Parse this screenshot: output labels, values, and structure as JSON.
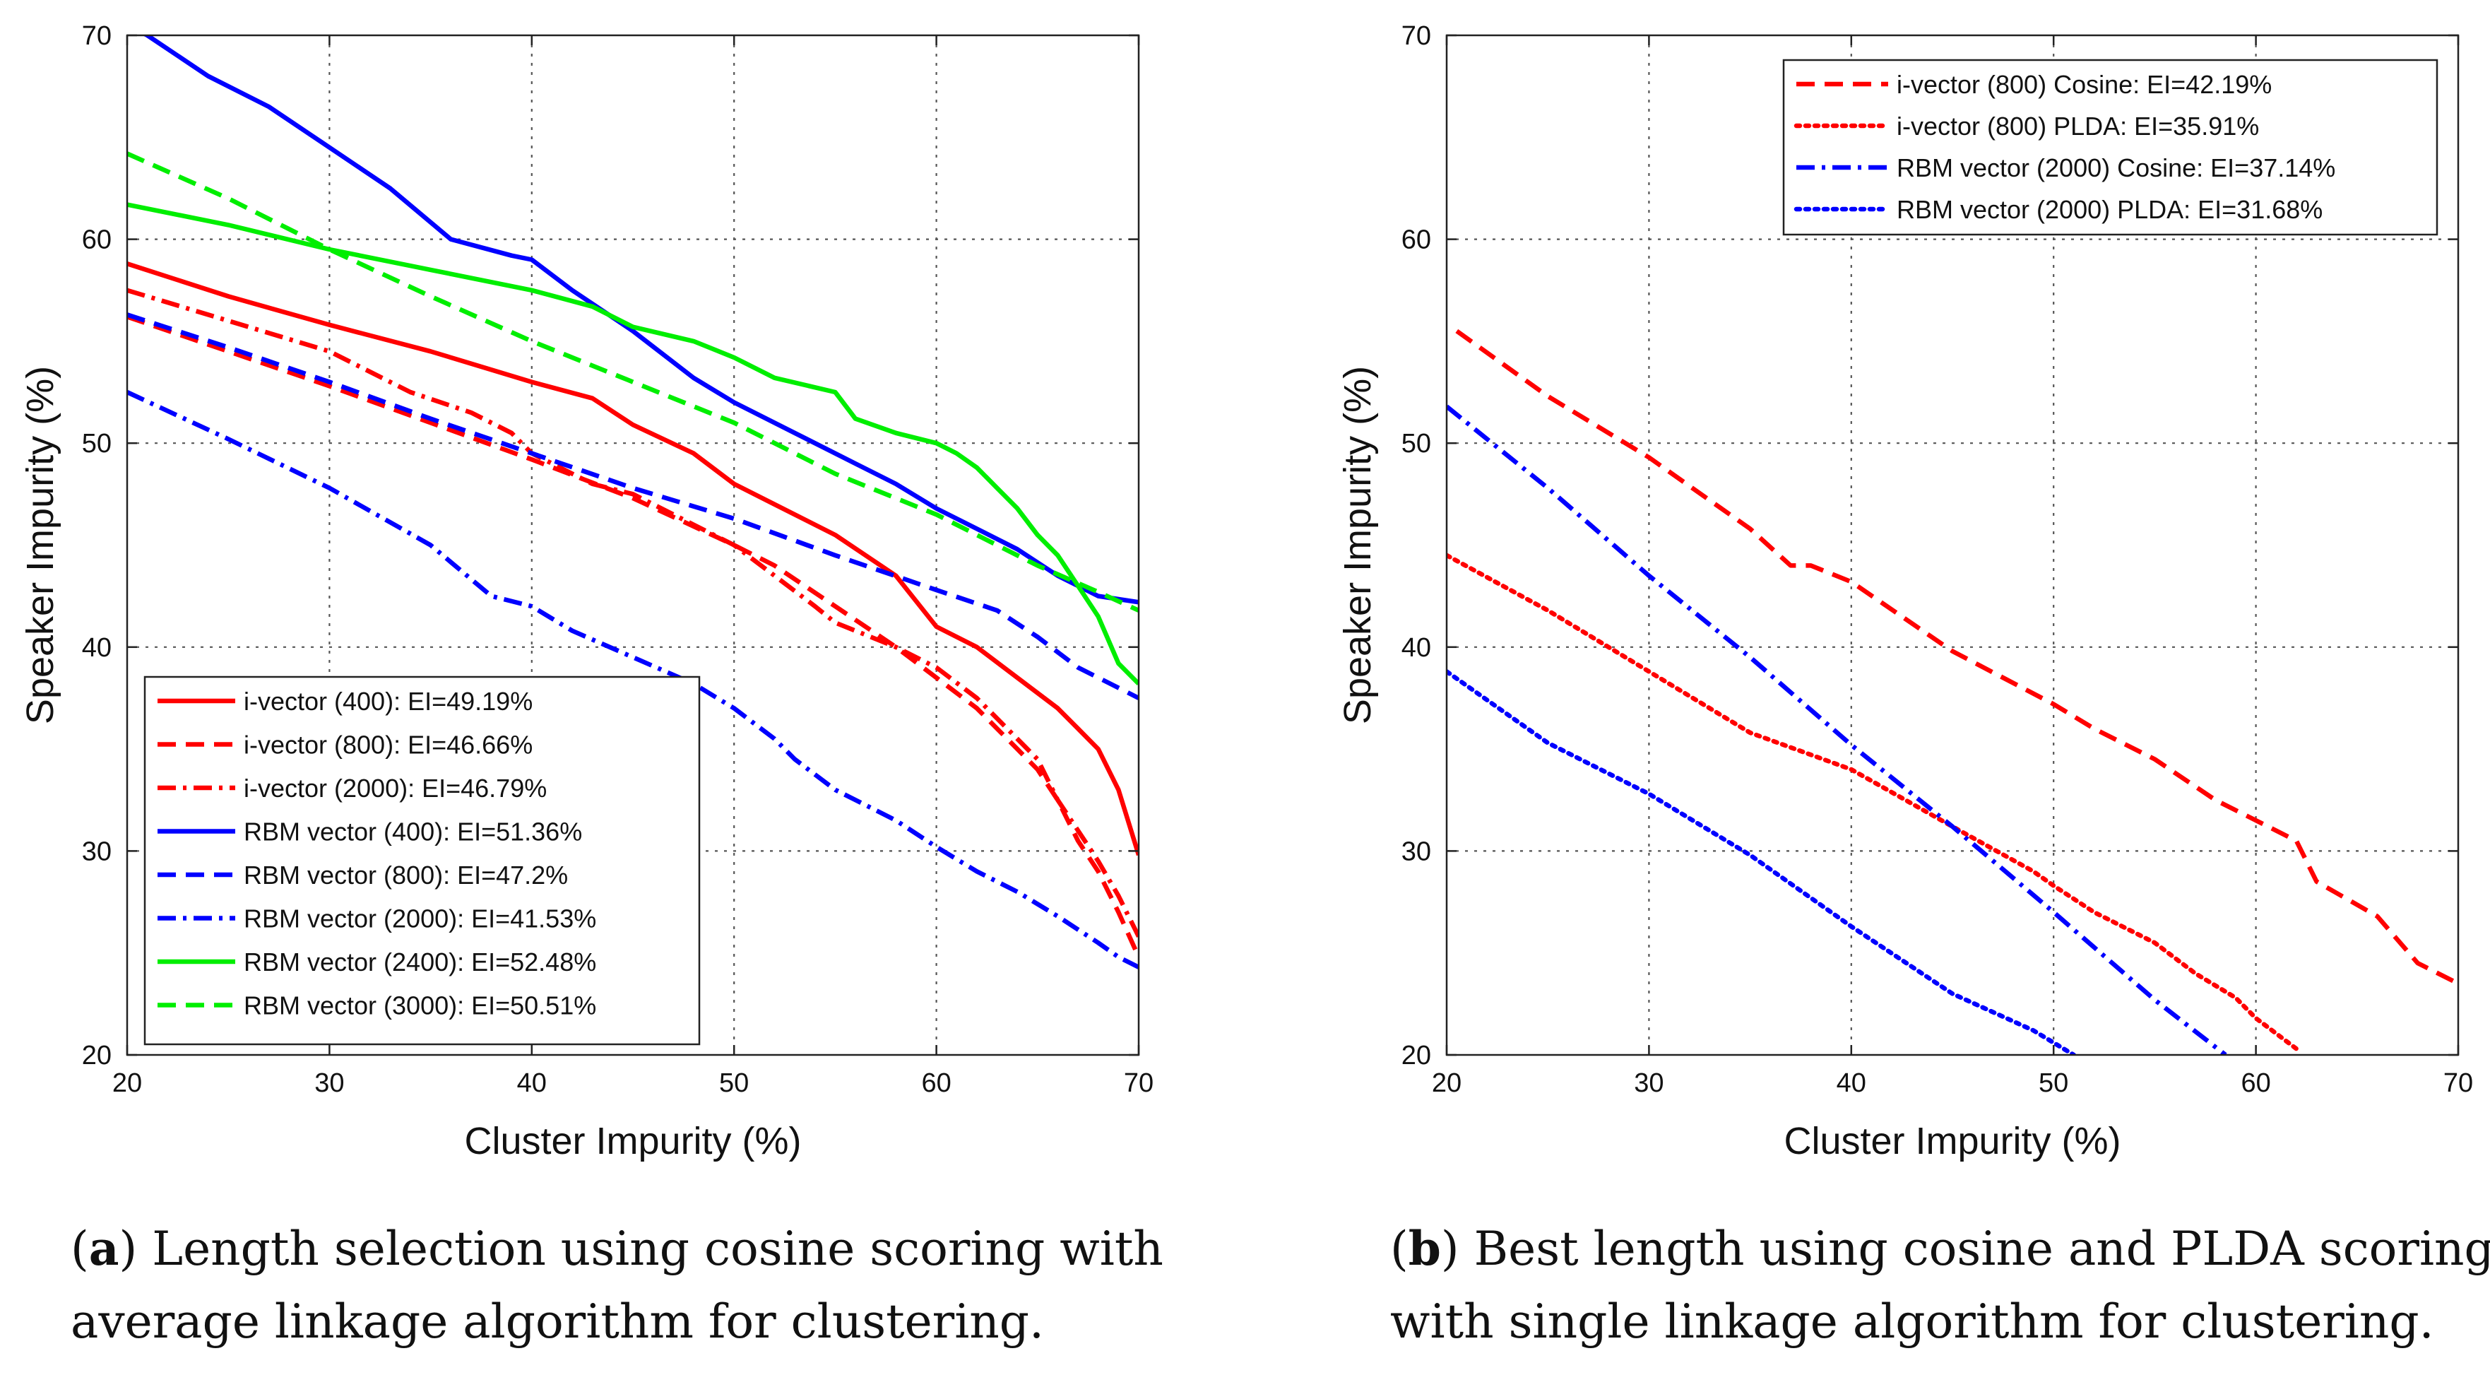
{
  "chart_data": [
    {
      "type": "line",
      "caption_letter": "a",
      "caption_lines": [
        "Length selection using cosine scoring with",
        "average linkage algorithm for clustering."
      ],
      "xlabel": "Cluster Impurity (%)",
      "ylabel": "Speaker Impurity (%)",
      "xlim": [
        20,
        70
      ],
      "ylim": [
        20,
        70
      ],
      "xticks": [
        20,
        30,
        40,
        50,
        60,
        70
      ],
      "yticks": [
        20,
        30,
        40,
        50,
        60,
        70
      ],
      "grid": true,
      "legend_position": "bottom-left",
      "series": [
        {
          "name": "i-vector (400): EI=49.19%",
          "color": "#ff0000",
          "style": "solid",
          "x": [
            20,
            25,
            30,
            35,
            40,
            43,
            45,
            48,
            50,
            52,
            55,
            58,
            60,
            62,
            64,
            66,
            67,
            68,
            69,
            70
          ],
          "y": [
            58.8,
            57.2,
            55.8,
            54.5,
            53.0,
            52.2,
            50.9,
            49.5,
            48.0,
            47.0,
            45.5,
            43.5,
            41.0,
            40.0,
            38.5,
            37.0,
            36.0,
            35.0,
            33.0,
            29.8
          ]
        },
        {
          "name": "i-vector (800): EI=46.66%",
          "color": "#ff0000",
          "style": "dash",
          "x": [
            20,
            25,
            30,
            35,
            40,
            45,
            50,
            52,
            55,
            58,
            60,
            62,
            64,
            65,
            66,
            67,
            68,
            69,
            70
          ],
          "y": [
            56.2,
            54.5,
            52.8,
            51.0,
            49.2,
            47.3,
            45.0,
            44.0,
            42.0,
            40.0,
            38.5,
            37.0,
            35.0,
            34.0,
            32.5,
            30.5,
            29.0,
            27.0,
            24.8
          ]
        },
        {
          "name": "i-vector (2000): EI=46.79%",
          "color": "#ff0000",
          "style": "dashdot",
          "x": [
            20,
            25,
            30,
            34,
            37,
            39,
            40,
            43,
            45,
            48,
            50,
            52,
            54,
            55,
            58,
            60,
            62,
            64,
            65,
            66,
            67,
            68,
            69,
            70
          ],
          "y": [
            57.5,
            56.0,
            54.5,
            52.5,
            51.5,
            50.5,
            49.5,
            48.0,
            47.5,
            46.0,
            45.0,
            43.5,
            42.0,
            41.2,
            40.0,
            39.0,
            37.5,
            35.5,
            34.5,
            32.5,
            31.0,
            29.5,
            27.8,
            25.8
          ]
        },
        {
          "name": "RBM vector (400): EI=51.36%",
          "color": "#0000ff",
          "style": "solid",
          "x": [
            20,
            21,
            24,
            27,
            30,
            33,
            36,
            39,
            40,
            42,
            45,
            48,
            50,
            53,
            56,
            58,
            60,
            62,
            64,
            66,
            68,
            70
          ],
          "y": [
            70.5,
            70.0,
            68.0,
            66.5,
            64.5,
            62.5,
            60.0,
            59.2,
            59.0,
            57.5,
            55.5,
            53.2,
            52.0,
            50.5,
            49.0,
            48.0,
            46.8,
            45.8,
            44.8,
            43.5,
            42.5,
            42.2
          ]
        },
        {
          "name": "RBM vector (800): EI=47.2%",
          "color": "#0000ff",
          "style": "dash",
          "x": [
            20,
            25,
            30,
            35,
            40,
            45,
            50,
            55,
            60,
            63,
            65,
            67,
            69,
            70
          ],
          "y": [
            56.3,
            54.7,
            53.0,
            51.2,
            49.5,
            47.8,
            46.3,
            44.5,
            42.8,
            41.8,
            40.5,
            39.0,
            38.0,
            37.5
          ]
        },
        {
          "name": "RBM vector (2000): EI=41.53%",
          "color": "#0000ff",
          "style": "dashdot",
          "x": [
            20,
            25,
            30,
            35,
            38,
            40,
            42,
            45,
            48,
            50,
            52,
            53,
            55,
            58,
            60,
            62,
            64,
            66,
            68,
            69,
            70
          ],
          "y": [
            52.5,
            50.2,
            47.8,
            45.0,
            42.5,
            42.0,
            40.8,
            39.5,
            38.2,
            37.0,
            35.5,
            34.5,
            33.0,
            31.5,
            30.2,
            29.0,
            28.0,
            26.8,
            25.5,
            24.8,
            24.3
          ]
        },
        {
          "name": "RBM vector (2400): EI=52.48%",
          "color": "#00ee00",
          "style": "solid",
          "x": [
            20,
            25,
            30,
            35,
            40,
            43,
            45,
            48,
            50,
            52,
            55,
            56,
            58,
            60,
            61,
            62,
            63,
            64,
            65,
            66,
            67,
            68,
            69,
            70
          ],
          "y": [
            61.7,
            60.7,
            59.5,
            58.5,
            57.5,
            56.7,
            55.7,
            55.0,
            54.2,
            53.2,
            52.5,
            51.2,
            50.5,
            50.0,
            49.5,
            48.8,
            47.8,
            46.8,
            45.5,
            44.5,
            43.0,
            41.5,
            39.2,
            38.2
          ]
        },
        {
          "name": "RBM vector (3000): EI=50.51%",
          "color": "#00ee00",
          "style": "dash",
          "x": [
            20,
            25,
            30,
            35,
            40,
            45,
            50,
            55,
            60,
            65,
            68,
            70
          ],
          "y": [
            64.2,
            62.0,
            59.5,
            57.2,
            55.0,
            53.0,
            51.0,
            48.5,
            46.5,
            44.0,
            42.7,
            41.8
          ]
        }
      ]
    },
    {
      "type": "line",
      "caption_letter": "b",
      "caption_lines": [
        "Best length using cosine and PLDA scoring",
        "with single linkage algorithm for clustering."
      ],
      "xlabel": "Cluster Impurity (%)",
      "ylabel": "Speaker Impurity (%)",
      "xlim": [
        20,
        70
      ],
      "ylim": [
        20,
        70
      ],
      "xticks": [
        20,
        30,
        40,
        50,
        60,
        70
      ],
      "yticks": [
        20,
        30,
        40,
        50,
        60,
        70
      ],
      "grid": true,
      "legend_position": "top-right",
      "series": [
        {
          "name": "i-vector (800) Cosine: EI=42.19%",
          "color": "#ff0000",
          "style": "dash",
          "x": [
            20.5,
            25,
            30,
            35,
            37,
            38,
            40,
            45,
            50,
            52,
            55,
            58,
            60,
            62,
            63,
            66,
            68,
            70
          ],
          "y": [
            55.5,
            52.3,
            49.3,
            45.8,
            44.0,
            44.0,
            43.2,
            39.8,
            37.2,
            36.0,
            34.5,
            32.5,
            31.5,
            30.5,
            28.5,
            26.8,
            24.5,
            23.5
          ]
        },
        {
          "name": "i-vector (800) PLDA: EI=35.91%",
          "color": "#ff0000",
          "style": "dot",
          "x": [
            20,
            25,
            30,
            35,
            40,
            45,
            49,
            50,
            52,
            55,
            57,
            59,
            60,
            62
          ],
          "y": [
            44.5,
            41.8,
            38.8,
            35.8,
            34.0,
            31.2,
            29.0,
            28.3,
            27.0,
            25.5,
            24.0,
            22.8,
            21.8,
            20.3
          ]
        },
        {
          "name": "RBM vector (2000) Cosine: EI=37.14%",
          "color": "#0000ff",
          "style": "dashdot",
          "x": [
            20,
            25,
            30,
            35,
            40,
            45,
            50,
            55,
            58.5
          ],
          "y": [
            51.8,
            47.8,
            43.5,
            39.5,
            35.2,
            31.2,
            27.0,
            22.7,
            20.0
          ]
        },
        {
          "name": "RBM vector (2000) PLDA: EI=31.68%",
          "color": "#0000ff",
          "style": "dot",
          "x": [
            20,
            25,
            30,
            35,
            40,
            45,
            49,
            51
          ],
          "y": [
            38.8,
            35.3,
            32.8,
            29.8,
            26.3,
            23.0,
            21.2,
            20.0
          ]
        }
      ]
    }
  ]
}
